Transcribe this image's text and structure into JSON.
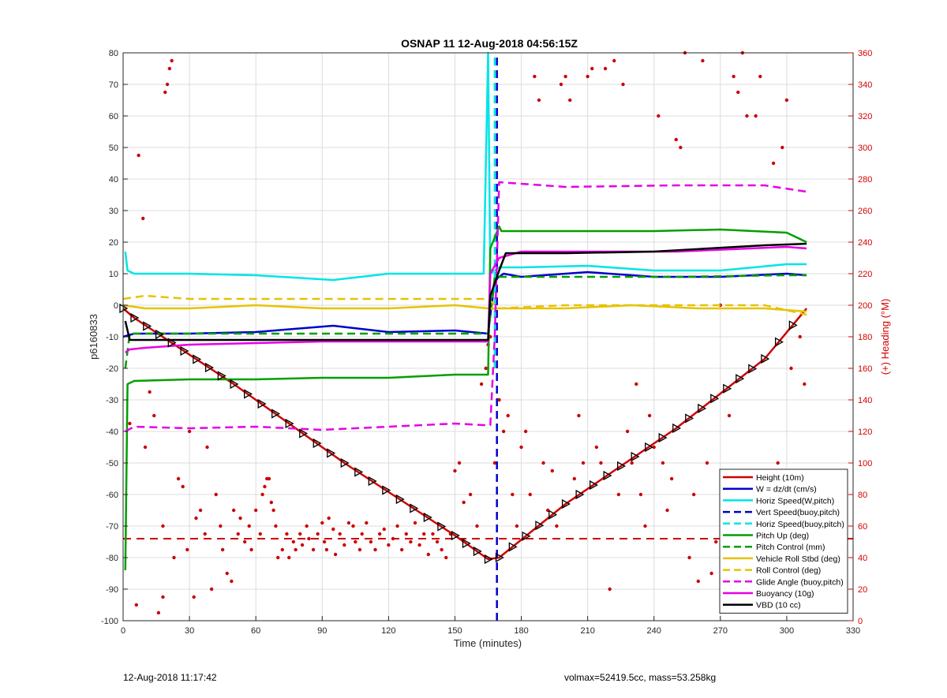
{
  "footer": {
    "left": "12-Aug-2018 11:17:42",
    "right": "volmax=52419.5cc, mass=53.258kg"
  },
  "chart_data": {
    "type": "line",
    "title": "OSNAP 11 12-Aug-2018 04:56:15Z",
    "xlabel": "Time (minutes)",
    "ylabel": "p6160833",
    "y2label": "(+) Heading (°M)",
    "xlim": [
      0,
      330
    ],
    "ylim": [
      -100,
      80
    ],
    "y2lim": [
      0,
      360
    ],
    "xticks": [
      0,
      30,
      60,
      90,
      120,
      150,
      180,
      210,
      240,
      270,
      300,
      330
    ],
    "yticks": [
      -100,
      -90,
      -80,
      -70,
      -60,
      -50,
      -40,
      -30,
      -20,
      -10,
      0,
      10,
      20,
      30,
      40,
      50,
      60,
      70,
      80
    ],
    "y2ticks": [
      0,
      20,
      40,
      60,
      80,
      100,
      120,
      140,
      160,
      180,
      200,
      220,
      240,
      260,
      280,
      300,
      320,
      340,
      360
    ],
    "grid": true,
    "legend_position": "bottom-right",
    "series": [
      {
        "name": "Height (10m)",
        "color": "#cc0000",
        "style": "solid",
        "x": [
          0,
          5,
          50,
          100,
          150,
          165,
          170,
          200,
          250,
          290,
          309
        ],
        "y": [
          -1,
          -4,
          -25,
          -50,
          -73,
          -80.5,
          -80,
          -63,
          -39,
          -17,
          -1
        ]
      },
      {
        "name": "W = dz/dt (cm/s)",
        "color": "#0000cc",
        "style": "solid",
        "x": [
          0,
          5,
          30,
          60,
          95,
          120,
          150,
          165,
          168,
          172,
          180,
          210,
          240,
          270,
          300,
          309
        ],
        "y": [
          -10,
          -9,
          -9,
          -8.5,
          -6.5,
          -8.5,
          -8,
          -9,
          8,
          10,
          9,
          10.5,
          9,
          9,
          10,
          9.5
        ]
      },
      {
        "name": "Horiz Speed(W,pitch)",
        "color": "#00e5e5",
        "style": "solid",
        "x": [
          1,
          2,
          5,
          30,
          60,
          95,
          120,
          150,
          163,
          165,
          166,
          170,
          180,
          210,
          240,
          270,
          300,
          309
        ],
        "y": [
          17,
          11,
          10,
          10,
          9.5,
          8,
          10,
          10,
          10,
          80,
          10,
          12,
          12,
          12.5,
          11,
          11,
          13,
          13
        ]
      },
      {
        "name": "Vert Speed(buoy,pitch)",
        "color": "#0000cc",
        "style": "dashed",
        "x": [
          169,
          169,
          169
        ],
        "y": [
          -100,
          0,
          80
        ]
      },
      {
        "name": "Horiz Speed(buoy,pitch)",
        "color": "#00e5e5",
        "style": "dashed",
        "x": [
          168,
          168,
          168
        ],
        "y": [
          -20,
          20,
          80
        ]
      },
      {
        "name": "Pitch Up (deg)",
        "color": "#00a000",
        "style": "solid",
        "x": [
          1,
          2,
          5,
          30,
          60,
          90,
          120,
          150,
          165,
          166,
          170,
          171,
          180,
          210,
          240,
          270,
          300,
          309
        ],
        "y": [
          -84,
          -25,
          -24,
          -23.5,
          -23.5,
          -23,
          -23,
          -22,
          -22,
          18,
          25,
          23.5,
          23.5,
          23.5,
          23.5,
          24,
          23,
          20
        ]
      },
      {
        "name": "Pitch Control (mm)",
        "color": "#00a000",
        "style": "dashed",
        "x": [
          1,
          3,
          30,
          90,
          150,
          165,
          168,
          170,
          200,
          250,
          300,
          309
        ],
        "y": [
          -20,
          -9,
          -9,
          -9,
          -9,
          -9,
          9,
          9,
          9,
          9,
          9.5,
          9.5
        ]
      },
      {
        "name": "Vehicle Roll Stbd (deg)",
        "color": "#e6c300",
        "style": "solid",
        "x": [
          0,
          10,
          30,
          60,
          90,
          120,
          150,
          165,
          170,
          200,
          230,
          260,
          290,
          309
        ],
        "y": [
          0,
          -1,
          -1,
          0,
          -1,
          -1,
          0,
          -1,
          -1,
          -1,
          0,
          -1,
          -1,
          -2
        ]
      },
      {
        "name": "Roll Control (deg)",
        "color": "#e6c300",
        "style": "dashed",
        "x": [
          0,
          10,
          30,
          60,
          90,
          120,
          150,
          165,
          170,
          200,
          230,
          260,
          290,
          309
        ],
        "y": [
          2,
          3,
          2,
          2,
          2,
          2,
          2,
          2,
          -1,
          0,
          0,
          0,
          0,
          -3
        ]
      },
      {
        "name": "Glide Angle (buoy,pitch)",
        "color": "#e600e6",
        "style": "dashed",
        "x": [
          1,
          5,
          30,
          60,
          90,
          120,
          150,
          163,
          166,
          168,
          170,
          200,
          250,
          290,
          309
        ],
        "y": [
          -40,
          -38.5,
          -39,
          -38.5,
          -39.5,
          -38.5,
          -37.5,
          -38,
          -38,
          -10,
          39,
          37.5,
          38,
          38,
          36
        ]
      },
      {
        "name": "Buoyancy (10g)",
        "color": "#e600e6",
        "style": "solid",
        "x": [
          1,
          3,
          10,
          30,
          60,
          90,
          120,
          150,
          165,
          166,
          170,
          180,
          210,
          250,
          300,
          309
        ],
        "y": [
          -15,
          -14,
          -13.5,
          -12.5,
          -12,
          -11.5,
          -11.5,
          -11.5,
          -11.5,
          10,
          15,
          17,
          17,
          17,
          18.5,
          18
        ]
      },
      {
        "name": "VBD (10 cc)",
        "color": "#000000",
        "style": "solid",
        "x": [
          1,
          3,
          30,
          90,
          150,
          165,
          166,
          170,
          173,
          200,
          240,
          290,
          309
        ],
        "y": [
          -5,
          -11,
          -11,
          -11,
          -11,
          -11,
          3,
          11,
          16.5,
          16.5,
          17,
          19,
          19.5
        ]
      }
    ],
    "heading_points": {
      "name": "(+) Heading (°M)",
      "color": "#cc0000",
      "axis": "y2",
      "x": [
        3,
        6,
        7,
        9,
        10,
        12,
        14,
        16,
        18,
        18,
        19,
        20,
        21,
        22,
        23,
        25,
        27,
        29,
        30,
        32,
        33,
        35,
        37,
        38,
        40,
        42,
        44,
        45,
        47,
        49,
        50,
        52,
        53,
        55,
        57,
        58,
        60,
        62,
        63,
        64,
        65,
        66,
        67,
        68,
        69,
        70,
        72,
        74,
        75,
        77,
        78,
        80,
        81,
        83,
        84,
        86,
        88,
        90,
        91,
        92,
        93,
        95,
        96,
        98,
        100,
        102,
        104,
        105,
        107,
        108,
        110,
        112,
        114,
        116,
        118,
        120,
        122,
        124,
        126,
        128,
        130,
        132,
        134,
        136,
        138,
        140,
        142,
        144,
        146,
        148,
        150,
        152,
        154,
        157,
        160,
        162,
        164,
        165,
        166,
        168,
        170,
        172,
        174,
        176,
        178,
        180,
        182,
        184,
        186,
        188,
        190,
        192,
        194,
        196,
        198,
        200,
        202,
        204,
        206,
        208,
        210,
        212,
        214,
        216,
        218,
        220,
        222,
        224,
        226,
        228,
        230,
        232,
        234,
        236,
        238,
        240,
        242,
        244,
        246,
        248,
        250,
        252,
        254,
        256,
        258,
        260,
        262,
        264,
        266,
        268,
        270,
        272,
        274,
        276,
        278,
        280,
        282,
        284,
        286,
        288,
        290,
        292,
        294,
        296,
        298,
        300,
        302,
        304,
        306,
        308
      ],
      "y": [
        125,
        10,
        295,
        255,
        110,
        145,
        130,
        5,
        15,
        60,
        335,
        340,
        350,
        355,
        40,
        90,
        85,
        45,
        120,
        15,
        65,
        70,
        55,
        110,
        20,
        80,
        60,
        45,
        30,
        25,
        70,
        55,
        65,
        50,
        60,
        45,
        70,
        55,
        80,
        85,
        90,
        90,
        75,
        70,
        60,
        40,
        45,
        55,
        40,
        50,
        45,
        55,
        48,
        60,
        52,
        45,
        55,
        62,
        50,
        45,
        65,
        58,
        42,
        55,
        48,
        62,
        60,
        50,
        45,
        55,
        62,
        50,
        45,
        55,
        58,
        48,
        52,
        60,
        45,
        55,
        50,
        62,
        48,
        55,
        42,
        55,
        50,
        45,
        40,
        55,
        95,
        100,
        75,
        80,
        60,
        150,
        160,
        175,
        180,
        100,
        140,
        120,
        130,
        80,
        60,
        110,
        120,
        80,
        345,
        330,
        100,
        70,
        95,
        60,
        340,
        345,
        330,
        90,
        130,
        100,
        345,
        350,
        110,
        100,
        350,
        20,
        355,
        80,
        340,
        120,
        100,
        150,
        80,
        60,
        130,
        110,
        320,
        100,
        70,
        90,
        305,
        300,
        360,
        40,
        80,
        25,
        355,
        100,
        30,
        50,
        200,
        75,
        130,
        345,
        335,
        360,
        320,
        95,
        320,
        345,
        60,
        90,
        290,
        100,
        300,
        330,
        160,
        20,
        180,
        150
      ],
      "style": "markers"
    },
    "reference_line": {
      "y": -74,
      "color": "#cc0000",
      "style": "dashed"
    },
    "triangle_markers": {
      "series": "Height (10m)",
      "color": "#000000",
      "style": "triangle-right"
    }
  }
}
